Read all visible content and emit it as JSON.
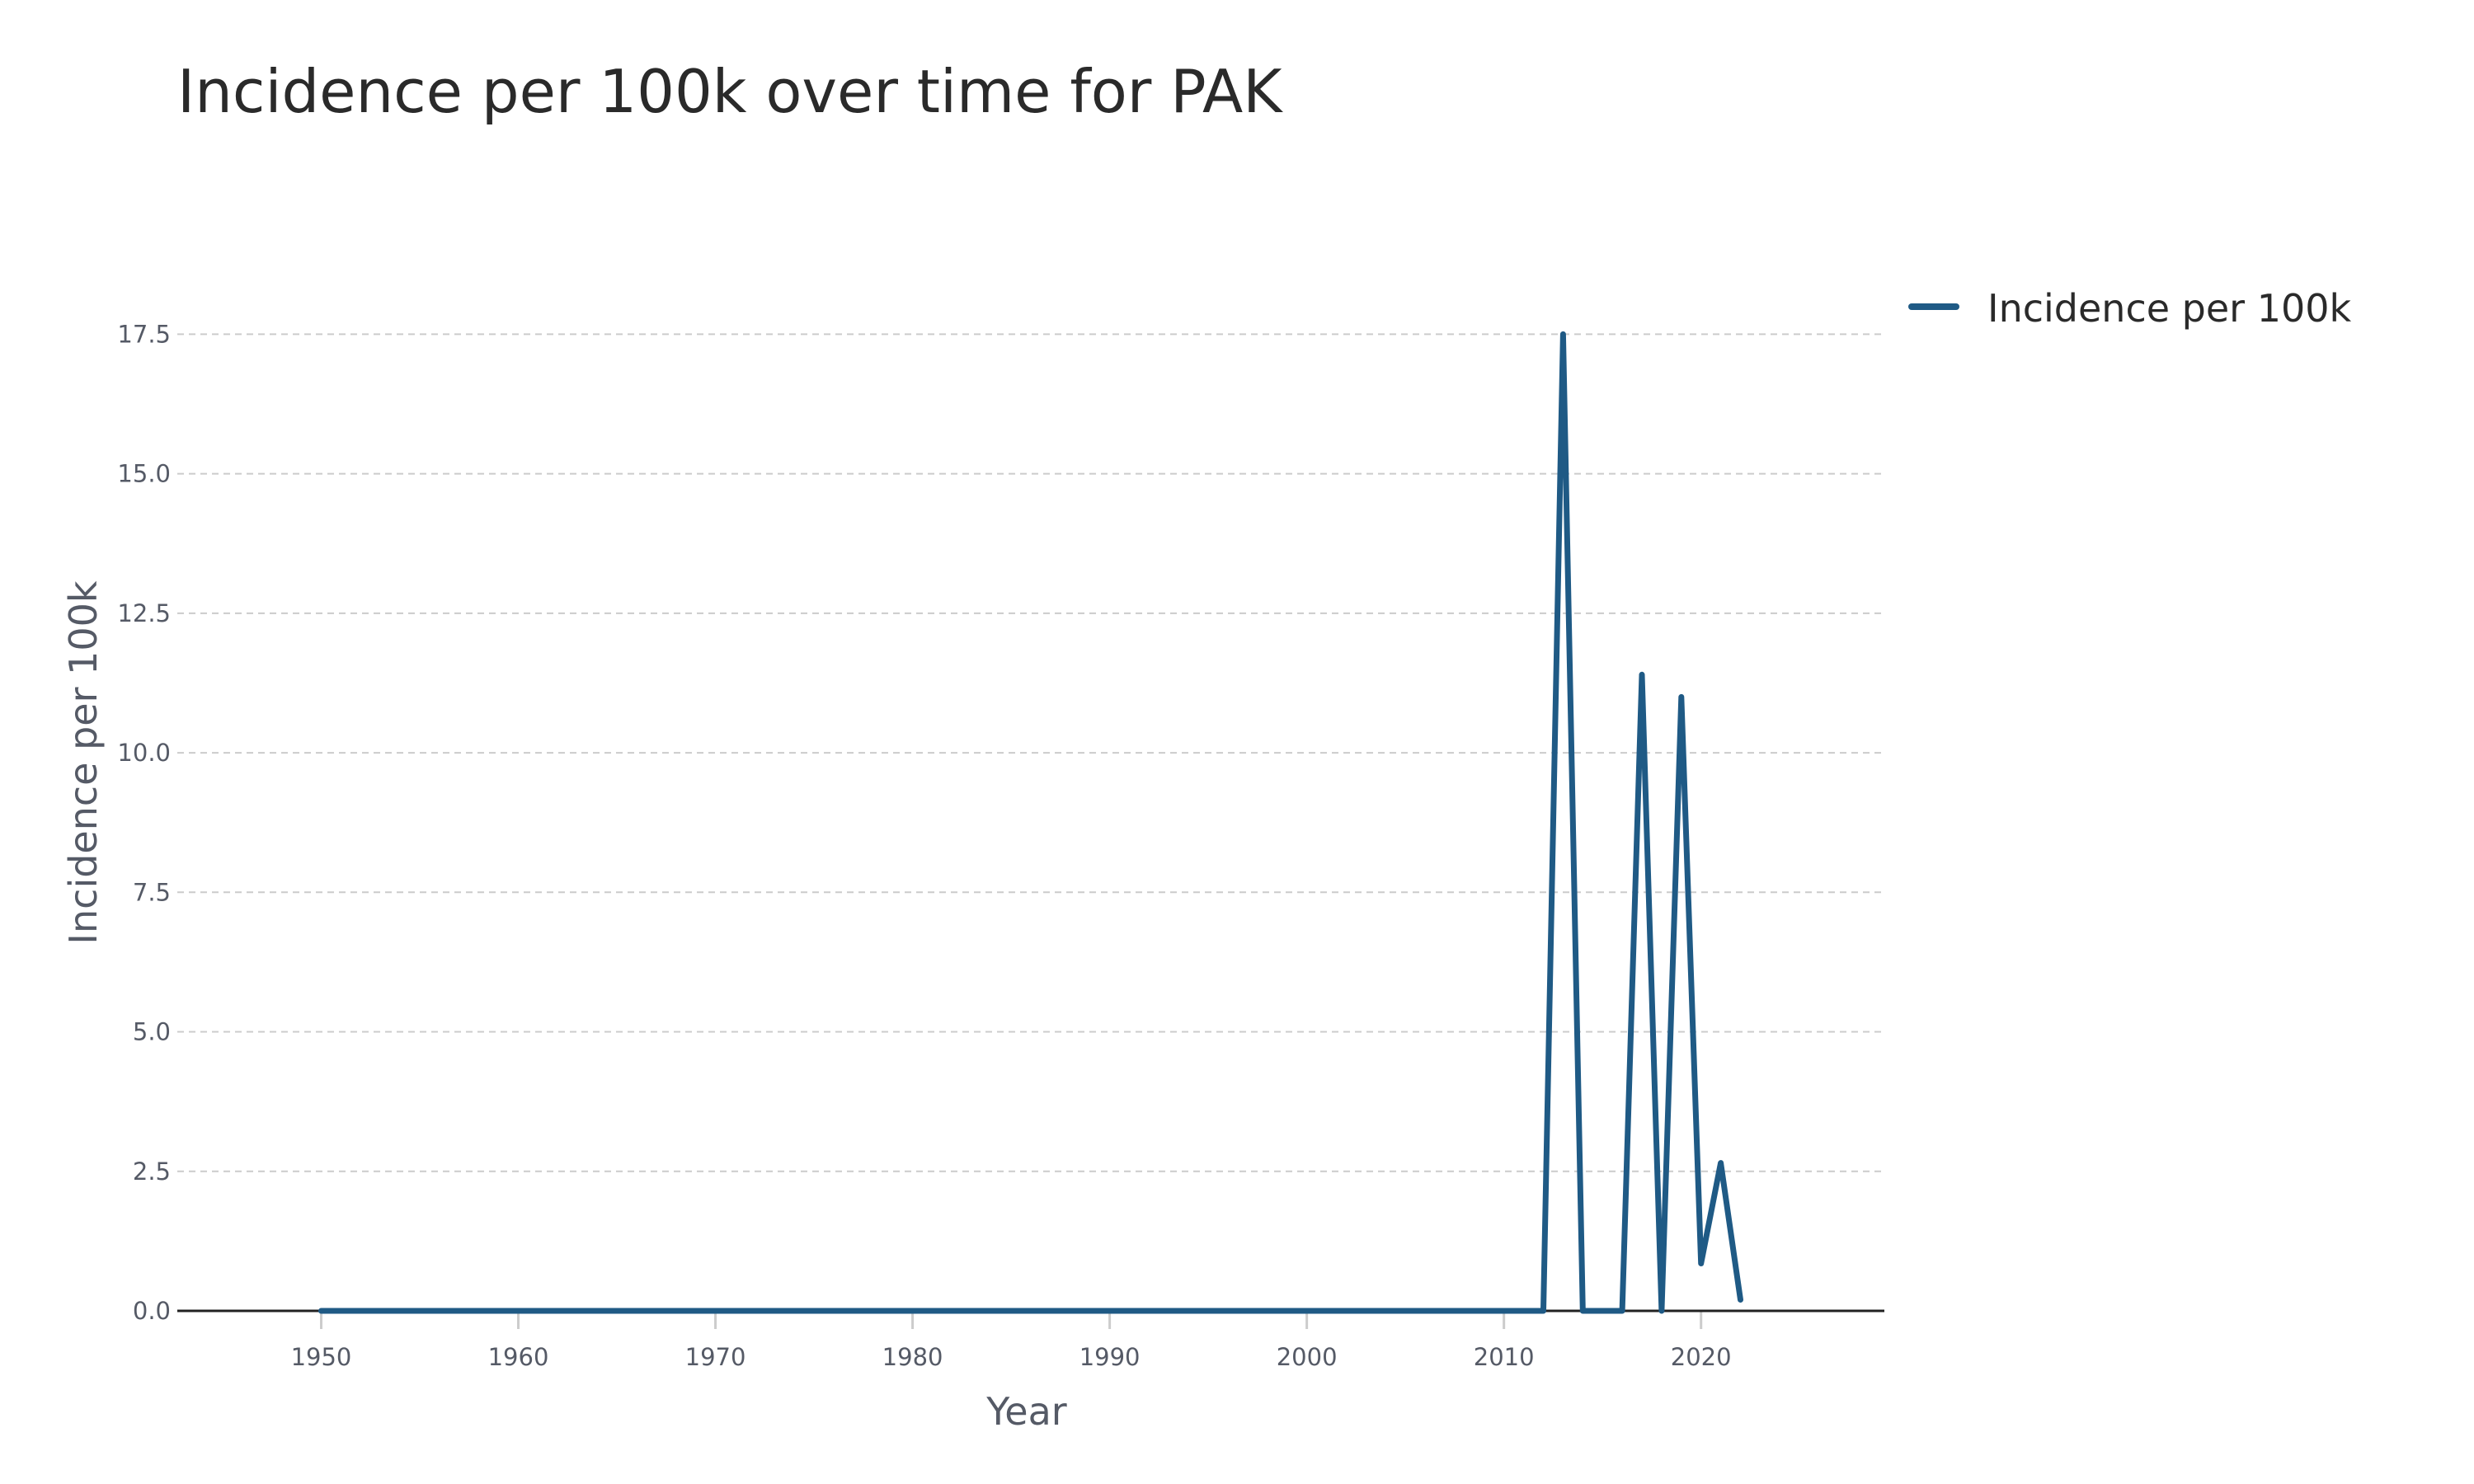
{
  "chart_data": {
    "type": "line",
    "title": "Incidence per 100k over time for PAK",
    "xlabel": "Year",
    "ylabel": "Incidence per 100k",
    "xlim": [
      1942.7,
      2029.3
    ],
    "ylim": [
      0,
      19.5
    ],
    "x_ticks": [
      1950,
      1960,
      1970,
      1980,
      1990,
      2000,
      2010,
      2020
    ],
    "x_tick_labels": [
      "1950",
      "1960",
      "1970",
      "1980",
      "1990",
      "2000",
      "2010",
      "2020"
    ],
    "y_ticks": [
      0,
      2.5,
      5,
      7.5,
      10,
      12.5,
      15,
      17.5
    ],
    "y_tick_labels": [
      "0.0",
      "2.5",
      "5.0",
      "7.5",
      "10.0",
      "12.5",
      "15.0",
      "17.5"
    ],
    "grid": "horizontal",
    "legend_position": "top-right",
    "series": [
      {
        "name": "Incidence per 100k",
        "color": "#1f5a85",
        "x": [
          1950,
          1951,
          1952,
          1953,
          1954,
          1955,
          1956,
          1957,
          1958,
          1959,
          1960,
          1961,
          1962,
          1963,
          1964,
          1965,
          1966,
          1967,
          1968,
          1969,
          1970,
          1971,
          1972,
          1973,
          1974,
          1975,
          1976,
          1977,
          1978,
          1979,
          1980,
          1981,
          1982,
          1983,
          1984,
          1985,
          1986,
          1987,
          1988,
          1989,
          1990,
          1991,
          1992,
          1993,
          1994,
          1995,
          1996,
          1997,
          1998,
          1999,
          2000,
          2001,
          2002,
          2003,
          2004,
          2005,
          2006,
          2007,
          2008,
          2009,
          2010,
          2011,
          2012,
          2013,
          2014,
          2015,
          2016,
          2017,
          2018,
          2019,
          2020,
          2021,
          2022
        ],
        "values": [
          0,
          0,
          0,
          0,
          0,
          0,
          0,
          0,
          0,
          0,
          0,
          0,
          0,
          0,
          0,
          0,
          0,
          0,
          0,
          0,
          0,
          0,
          0,
          0,
          0,
          0,
          0,
          0,
          0,
          0,
          0,
          0,
          0,
          0,
          0,
          0,
          0,
          0,
          0,
          0,
          0,
          0,
          0,
          0,
          0,
          0,
          0,
          0,
          0,
          0,
          0,
          0,
          0,
          0,
          0,
          0,
          0,
          0,
          0,
          0,
          0,
          0,
          0,
          17.5,
          0,
          0,
          0,
          11.4,
          0,
          11.0,
          0.85,
          2.65,
          0.2
        ]
      }
    ]
  }
}
